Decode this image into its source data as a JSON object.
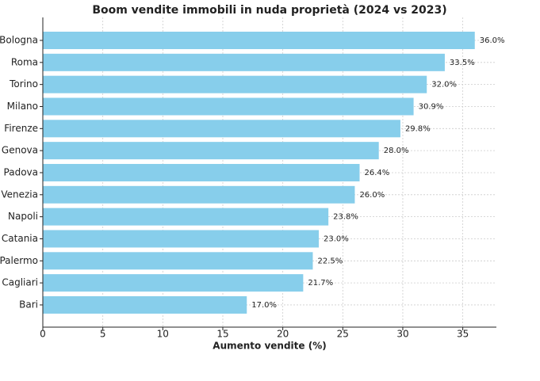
{
  "chart_data": {
    "type": "hbar",
    "title": "Boom vendite immobili in nuda proprietà (2024 vs 2023)",
    "x_label": "Aumento vendite (%)",
    "categories": [
      "Bologna",
      "Roma",
      "Torino",
      "Milano",
      "Firenze",
      "Genova",
      "Padova",
      "Venezia",
      "Napoli",
      "Catania",
      "Palermo",
      "Cagliari",
      "Bari"
    ],
    "values": [
      36.0,
      33.5,
      32.0,
      30.9,
      29.8,
      28.0,
      26.4,
      26.0,
      23.8,
      23.0,
      22.5,
      21.7,
      17.0
    ],
    "value_labels": [
      "36.0%",
      "33.5%",
      "32.0%",
      "30.9%",
      "29.8%",
      "28.0%",
      "26.4%",
      "26.0%",
      "23.8%",
      "23.0%",
      "22.5%",
      "21.7%",
      "17.0%"
    ],
    "color": "#87ceeb",
    "xlim": [
      0,
      37.8
    ],
    "xticks": [
      0,
      5,
      10,
      15,
      20,
      25,
      30,
      35
    ],
    "grid": true
  }
}
